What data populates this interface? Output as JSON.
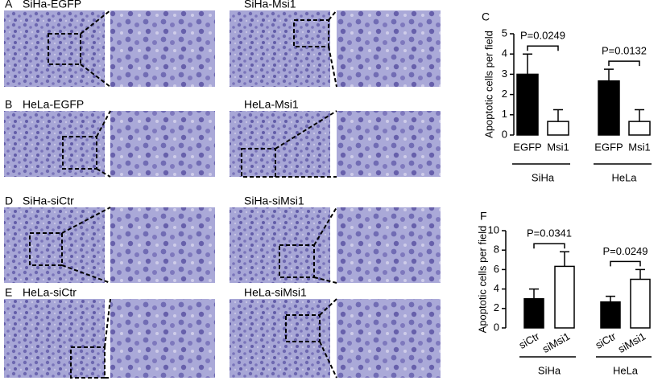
{
  "panels": [
    {
      "letter": "A",
      "left": "SiHa-EGFP",
      "right": "SiHa-Msi1"
    },
    {
      "letter": "B",
      "left": "HeLa-EGFP",
      "right": "HeLa-Msi1"
    },
    {
      "letter": "D",
      "left": "SiHa-siCtr",
      "right": "SiHa-siMsi1"
    },
    {
      "letter": "E",
      "left": "HeLa-siCtr",
      "right": "HeLa-siMsi1"
    }
  ],
  "chart_data": [
    {
      "type": "bar",
      "panel_label": "C",
      "ylabel": "Apoptotic cells per field",
      "categories": [
        "EGFP",
        "Msi1",
        "EGFP",
        "Msi1"
      ],
      "groups": [
        "SiHa",
        "HeLa"
      ],
      "values": [
        3.0,
        0.67,
        2.67,
        0.67
      ],
      "errors": [
        1.0,
        0.58,
        0.58,
        0.58
      ],
      "colors": [
        "#000000",
        "#ffffff",
        "#000000",
        "#ffffff"
      ],
      "annotations": [
        "P=0.0249",
        "P=0.0132"
      ],
      "ylim": [
        0,
        5
      ],
      "yticks": [
        0,
        1,
        2,
        3,
        4,
        5
      ]
    },
    {
      "type": "bar",
      "panel_label": "F",
      "ylabel": "Apoptotic cells per field",
      "categories": [
        "siCtr",
        "siMsi1",
        "siCtr",
        "siMsi1"
      ],
      "groups": [
        "SiHa",
        "HeLa"
      ],
      "values": [
        3.0,
        6.33,
        2.67,
        5.0
      ],
      "errors": [
        1.0,
        1.5,
        0.58,
        1.0
      ],
      "colors": [
        "#000000",
        "#ffffff",
        "#000000",
        "#ffffff"
      ],
      "annotations": [
        "P=0.0341",
        "P=0.0249"
      ],
      "ylim": [
        0,
        10
      ],
      "yticks": [
        0,
        2,
        4,
        6,
        8,
        10
      ]
    }
  ]
}
